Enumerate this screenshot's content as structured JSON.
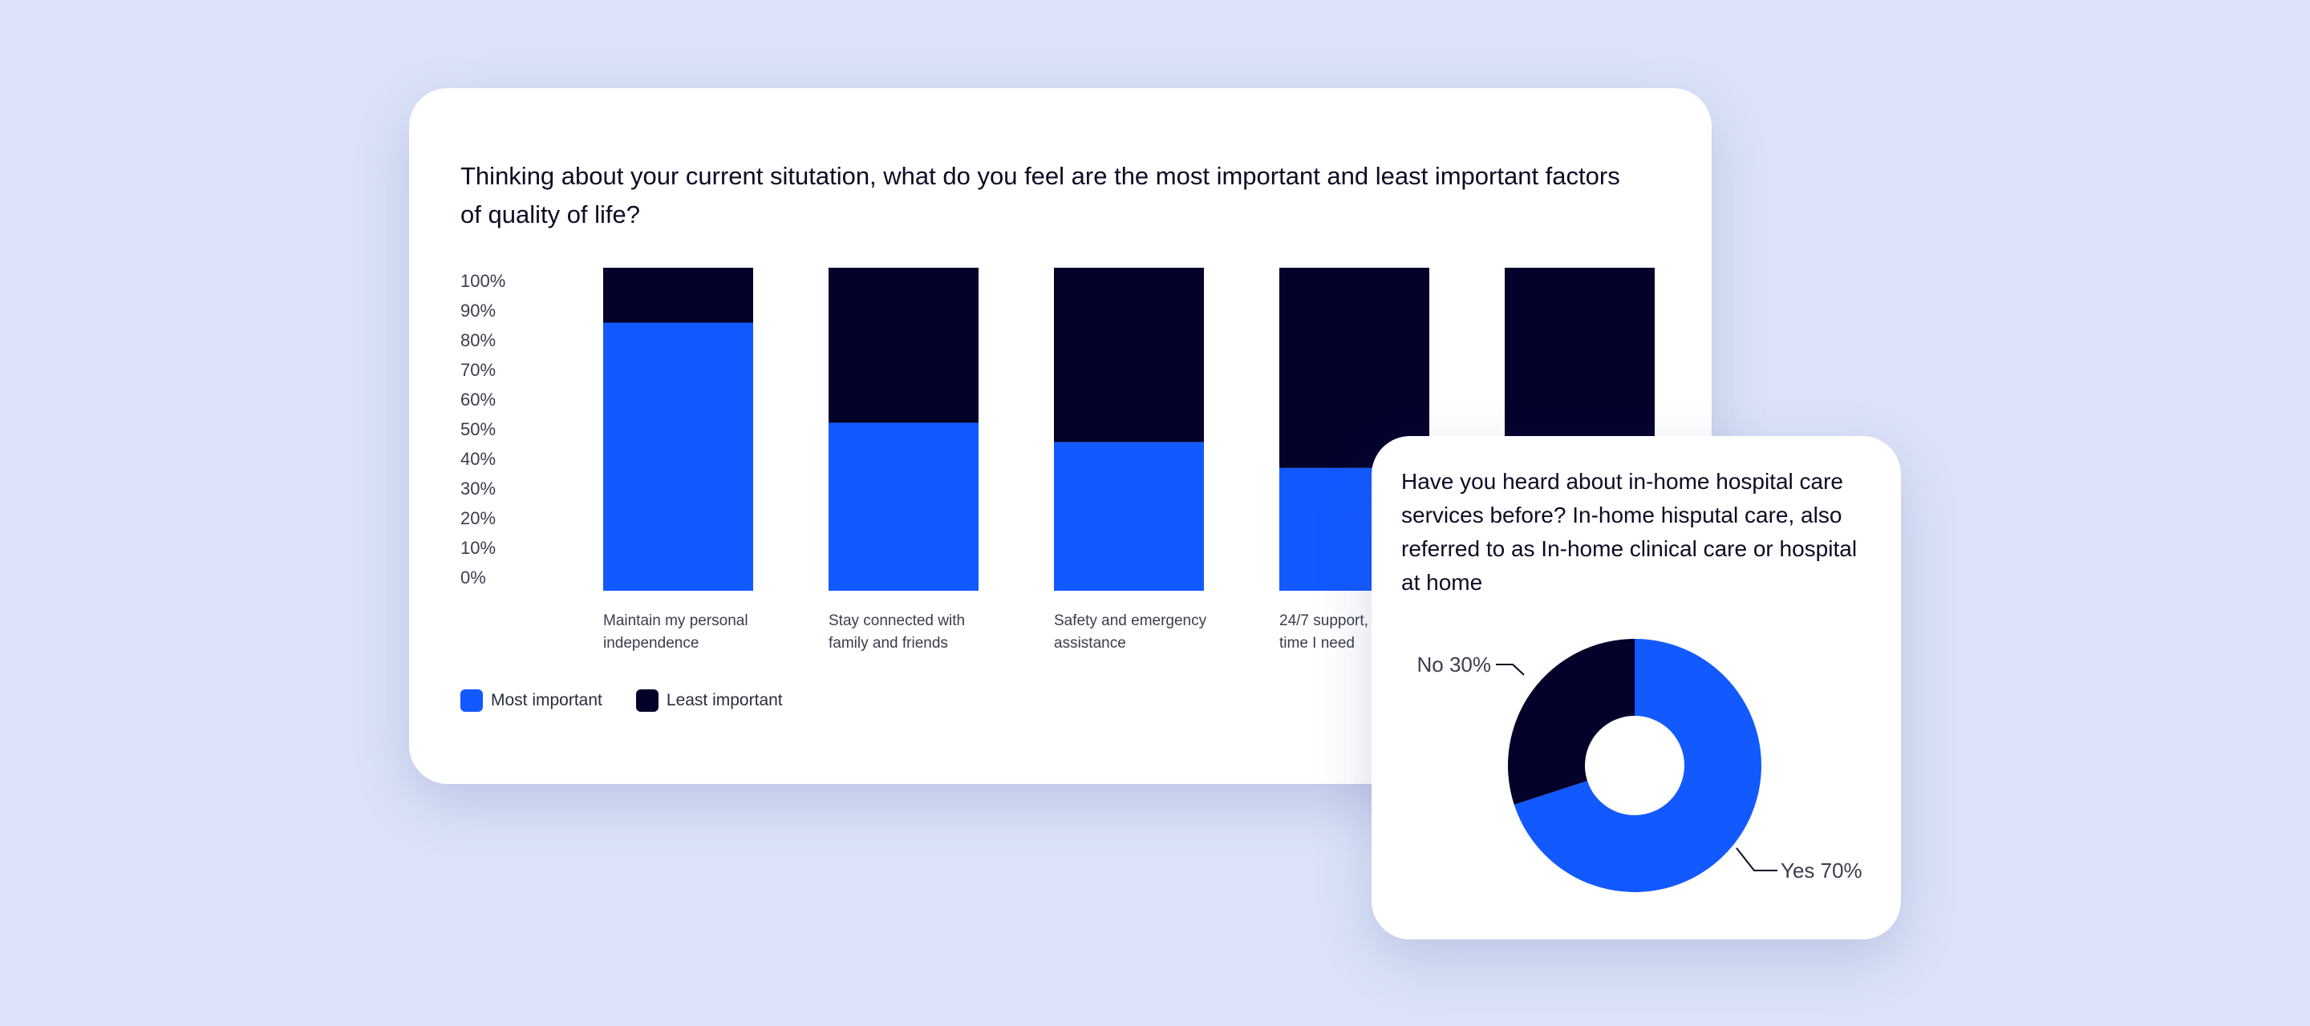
{
  "colors": {
    "most": "#1259ff",
    "least": "#03022b",
    "page_bg": "#dce3f8"
  },
  "bar_card": {
    "title": "Thinking about your current situtation, what do you feel are the most important and least important factors of quality of life?",
    "legend": [
      {
        "label": "Most important",
        "color": "#1259ff"
      },
      {
        "label": "Least important",
        "color": "#03022b"
      }
    ]
  },
  "donut_card": {
    "title": "Have you heard about in-home hospital care services before? In-home hisputal care, also referred to as In-home clinical care or hospital at home"
  },
  "chart_data": [
    {
      "type": "bar",
      "stacked": true,
      "categories": [
        [
          "Maintain my personal",
          "independence"
        ],
        [
          "Stay connected with",
          "family and friends"
        ],
        [
          "Safety and emergency",
          "assistance"
        ],
        [
          "24/7 support,",
          "time I need"
        ],
        [
          "",
          ""
        ]
      ],
      "series": [
        {
          "name": "Most important",
          "values": [
            83,
            52,
            46,
            38,
            30
          ]
        },
        {
          "name": "Least important",
          "values": [
            17,
            48,
            54,
            62,
            70
          ]
        }
      ],
      "y_ticks": [
        "100%",
        "90%",
        "80%",
        "70%",
        "60%",
        "50%",
        "40%",
        "30%",
        "20%",
        "10%",
        "0%"
      ],
      "ylim": [
        0,
        100
      ],
      "grid": false,
      "legend_position": "bottom-left"
    },
    {
      "type": "pie",
      "donut": true,
      "slices": [
        {
          "label": "Yes 70%",
          "value": 70,
          "color": "#1259ff"
        },
        {
          "label": "No 30%",
          "value": 30,
          "color": "#03022b"
        }
      ]
    }
  ]
}
